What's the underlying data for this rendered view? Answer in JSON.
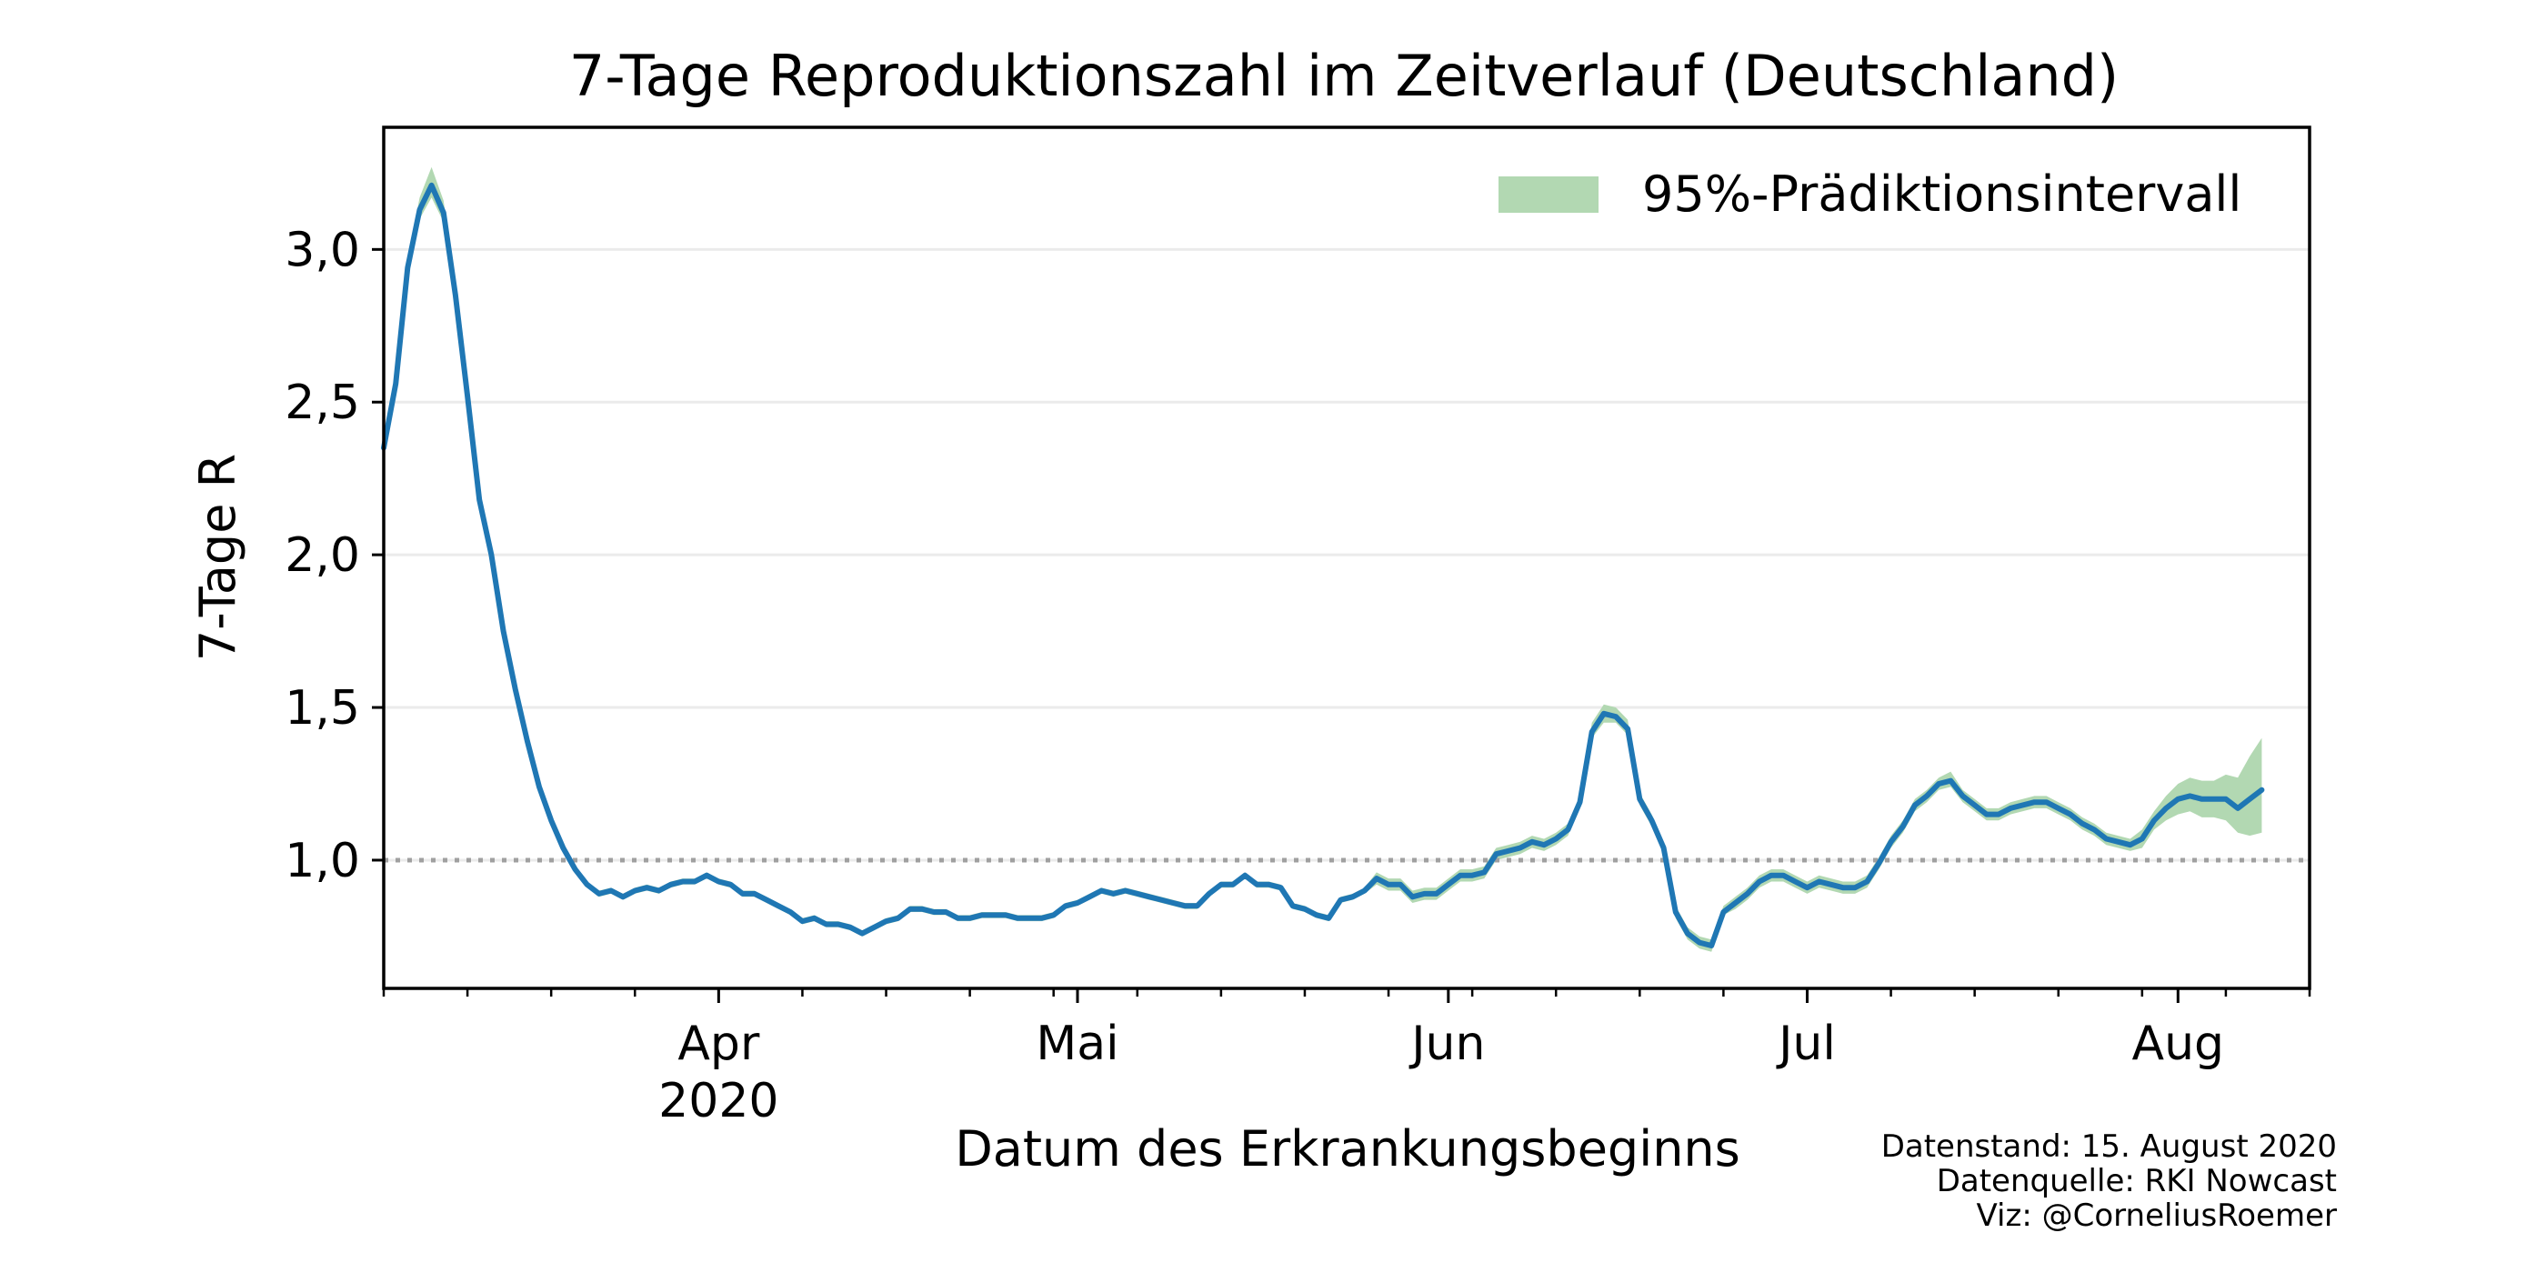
{
  "chart_data": {
    "type": "line",
    "title": "7-Tage Reproduktionszahl im Zeitverlauf (Deutschland)",
    "xlabel": "Datum des Erkrankungsbeginns",
    "ylabel": "7-Tage R",
    "xlim": [
      "2020-03-04",
      "2020-08-12"
    ],
    "ylim": [
      0.58,
      3.4
    ],
    "y_ticks": [
      1.0,
      1.5,
      2.0,
      2.5,
      3.0
    ],
    "y_tick_labels": [
      "1,0",
      "1,5",
      "2,0",
      "2,5",
      "3,0"
    ],
    "x_ticks": [
      {
        "date": "2020-04-01",
        "label": "Apr",
        "sublabel": "2020"
      },
      {
        "date": "2020-05-01",
        "label": "Mai",
        "sublabel": ""
      },
      {
        "date": "2020-06-01",
        "label": "Jun",
        "sublabel": ""
      },
      {
        "date": "2020-07-01",
        "label": "Jul",
        "sublabel": ""
      },
      {
        "date": "2020-08-01",
        "label": "Aug",
        "sublabel": ""
      }
    ],
    "grid": "horizontal",
    "reference_line": {
      "y": 1.0,
      "style": "dotted",
      "color": "#a0a0a0"
    },
    "legend": {
      "position": "top-right",
      "entries": [
        {
          "label": "95%-Prädiktionsintervall",
          "color": "#b2d8b2"
        }
      ]
    },
    "series": [
      {
        "color": "#1f77b4",
        "band_color": "#b2d8b2",
        "start_date": "2020-03-04",
        "values": [
          2.35,
          2.56,
          2.94,
          3.13,
          3.21,
          3.12,
          2.85,
          2.52,
          2.18,
          2.0,
          1.75,
          1.56,
          1.39,
          1.24,
          1.13,
          1.04,
          0.97,
          0.92,
          0.89,
          0.9,
          0.88,
          0.9,
          0.91,
          0.9,
          0.92,
          0.93,
          0.93,
          0.95,
          0.93,
          0.92,
          0.89,
          0.89,
          0.87,
          0.85,
          0.83,
          0.8,
          0.81,
          0.79,
          0.79,
          0.78,
          0.76,
          0.78,
          0.8,
          0.81,
          0.84,
          0.84,
          0.83,
          0.83,
          0.81,
          0.81,
          0.82,
          0.82,
          0.82,
          0.81,
          0.81,
          0.81,
          0.82,
          0.85,
          0.86,
          0.88,
          0.9,
          0.89,
          0.9,
          0.89,
          0.88,
          0.87,
          0.86,
          0.85,
          0.85,
          0.89,
          0.92,
          0.92,
          0.95,
          0.92,
          0.92,
          0.91,
          0.85,
          0.84,
          0.82,
          0.81,
          0.87,
          0.88,
          0.9,
          0.94,
          0.92,
          0.92,
          0.88,
          0.89,
          0.89,
          0.92,
          0.95,
          0.95,
          0.96,
          1.02,
          1.03,
          1.04,
          1.06,
          1.05,
          1.07,
          1.1,
          1.19,
          1.42,
          1.48,
          1.47,
          1.43,
          1.2,
          1.13,
          1.04,
          0.83,
          0.76,
          0.73,
          0.72,
          0.83,
          0.86,
          0.89,
          0.93,
          0.95,
          0.95,
          0.93,
          0.91,
          0.93,
          0.92,
          0.91,
          0.91,
          0.93,
          0.99,
          1.06,
          1.11,
          1.18,
          1.21,
          1.25,
          1.26,
          1.21,
          1.18,
          1.15,
          1.15,
          1.17,
          1.18,
          1.19,
          1.19,
          1.17,
          1.15,
          1.12,
          1.1,
          1.07,
          1.06,
          1.05,
          1.07,
          1.13,
          1.17,
          1.2,
          1.21,
          1.2,
          1.2,
          1.2,
          1.17,
          1.2,
          1.23
        ],
        "lower": [
          2.33,
          2.54,
          2.92,
          3.1,
          3.17,
          3.09,
          2.83,
          2.5,
          2.17,
          1.99,
          1.74,
          1.55,
          1.38,
          1.23,
          1.12,
          1.03,
          0.96,
          0.91,
          0.88,
          0.89,
          0.87,
          0.89,
          0.9,
          0.89,
          0.91,
          0.92,
          0.92,
          0.94,
          0.92,
          0.91,
          0.88,
          0.88,
          0.86,
          0.84,
          0.82,
          0.79,
          0.8,
          0.78,
          0.78,
          0.77,
          0.75,
          0.77,
          0.79,
          0.8,
          0.83,
          0.83,
          0.82,
          0.82,
          0.8,
          0.8,
          0.81,
          0.81,
          0.81,
          0.8,
          0.8,
          0.8,
          0.81,
          0.84,
          0.85,
          0.87,
          0.89,
          0.88,
          0.89,
          0.88,
          0.87,
          0.86,
          0.85,
          0.84,
          0.84,
          0.88,
          0.91,
          0.91,
          0.94,
          0.91,
          0.91,
          0.9,
          0.84,
          0.83,
          0.81,
          0.8,
          0.86,
          0.87,
          0.89,
          0.92,
          0.9,
          0.9,
          0.86,
          0.87,
          0.87,
          0.9,
          0.93,
          0.93,
          0.94,
          1.0,
          1.01,
          1.02,
          1.04,
          1.03,
          1.05,
          1.08,
          1.17,
          1.4,
          1.45,
          1.45,
          1.41,
          1.18,
          1.11,
          1.02,
          0.81,
          0.74,
          0.71,
          0.7,
          0.82,
          0.84,
          0.87,
          0.91,
          0.93,
          0.93,
          0.91,
          0.89,
          0.91,
          0.9,
          0.89,
          0.89,
          0.91,
          0.97,
          1.04,
          1.09,
          1.16,
          1.19,
          1.23,
          1.24,
          1.19,
          1.16,
          1.13,
          1.13,
          1.15,
          1.16,
          1.17,
          1.17,
          1.15,
          1.13,
          1.1,
          1.08,
          1.05,
          1.04,
          1.03,
          1.04,
          1.1,
          1.13,
          1.15,
          1.16,
          1.14,
          1.14,
          1.13,
          1.09,
          1.08,
          1.09
        ],
        "upper": [
          2.37,
          2.58,
          2.97,
          3.17,
          3.27,
          3.16,
          2.88,
          2.54,
          2.2,
          2.01,
          1.76,
          1.57,
          1.4,
          1.25,
          1.14,
          1.05,
          0.98,
          0.93,
          0.9,
          0.91,
          0.89,
          0.91,
          0.92,
          0.91,
          0.93,
          0.94,
          0.94,
          0.96,
          0.94,
          0.93,
          0.9,
          0.9,
          0.88,
          0.86,
          0.84,
          0.81,
          0.82,
          0.8,
          0.8,
          0.79,
          0.77,
          0.79,
          0.81,
          0.82,
          0.85,
          0.85,
          0.84,
          0.84,
          0.82,
          0.82,
          0.83,
          0.83,
          0.83,
          0.82,
          0.82,
          0.82,
          0.83,
          0.86,
          0.87,
          0.89,
          0.91,
          0.9,
          0.91,
          0.9,
          0.89,
          0.88,
          0.87,
          0.86,
          0.86,
          0.9,
          0.93,
          0.93,
          0.96,
          0.93,
          0.93,
          0.92,
          0.86,
          0.85,
          0.83,
          0.82,
          0.88,
          0.89,
          0.91,
          0.96,
          0.94,
          0.94,
          0.9,
          0.91,
          0.91,
          0.94,
          0.97,
          0.97,
          0.98,
          1.04,
          1.05,
          1.06,
          1.08,
          1.07,
          1.09,
          1.12,
          1.21,
          1.45,
          1.51,
          1.5,
          1.46,
          1.22,
          1.15,
          1.06,
          0.85,
          0.78,
          0.75,
          0.74,
          0.85,
          0.88,
          0.91,
          0.95,
          0.97,
          0.97,
          0.95,
          0.93,
          0.95,
          0.94,
          0.93,
          0.93,
          0.95,
          1.01,
          1.08,
          1.13,
          1.2,
          1.23,
          1.27,
          1.29,
          1.23,
          1.2,
          1.17,
          1.17,
          1.19,
          1.2,
          1.21,
          1.21,
          1.19,
          1.17,
          1.14,
          1.12,
          1.09,
          1.08,
          1.07,
          1.1,
          1.16,
          1.21,
          1.25,
          1.27,
          1.26,
          1.26,
          1.28,
          1.27,
          1.34,
          1.4
        ]
      }
    ],
    "footer_lines": [
      "Datenstand: 15. August 2020",
      "Datenquelle: RKI Nowcast",
      "Viz: @CorneliusRoemer"
    ]
  }
}
